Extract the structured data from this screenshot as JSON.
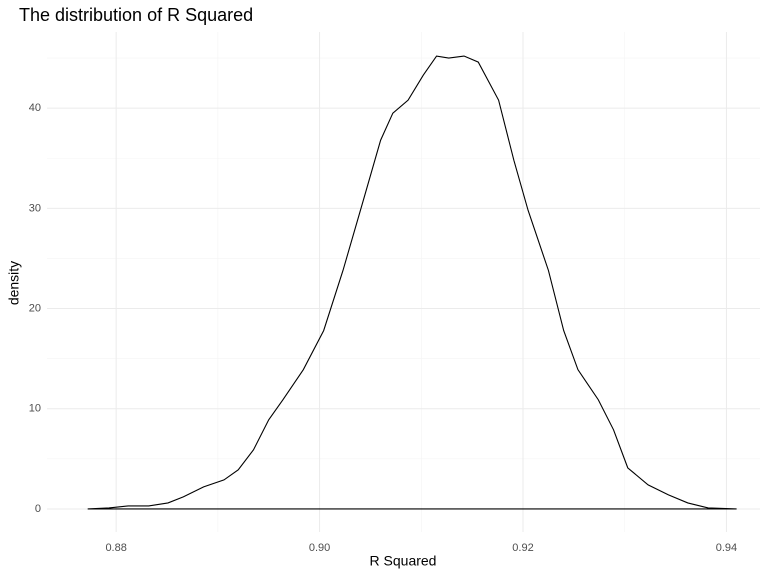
{
  "chart_data": {
    "type": "density",
    "title": "The distribution of R Squared",
    "x_label": "R Squared",
    "y_label": "density",
    "x": [
      0.8772,
      0.8793,
      0.8812,
      0.8832,
      0.8851,
      0.8866,
      0.8886,
      0.8906,
      0.892,
      0.8935,
      0.895,
      0.8964,
      0.8984,
      0.9004,
      0.9023,
      0.9043,
      0.906,
      0.9072,
      0.9087,
      0.9102,
      0.9115,
      0.9127,
      0.9142,
      0.9156,
      0.9176,
      0.9191,
      0.9205,
      0.9225,
      0.924,
      0.9254,
      0.9274,
      0.9289,
      0.9303,
      0.9323,
      0.9343,
      0.9362,
      0.9382,
      0.941
    ],
    "values": [
      0,
      0.1,
      0.3,
      0.3,
      0.6,
      1.2,
      2.2,
      2.9,
      3.9,
      5.9,
      8.9,
      10.9,
      13.9,
      17.8,
      23.8,
      30.8,
      36.8,
      39.5,
      40.8,
      43.3,
      45.2,
      45.0,
      45.2,
      44.6,
      40.8,
      34.8,
      29.8,
      23.8,
      17.8,
      13.9,
      10.9,
      7.9,
      4.1,
      2.4,
      1.4,
      0.6,
      0.1,
      0
    ],
    "color": "#000000",
    "xlim": [
      0.8732,
      0.9433
    ],
    "xticks": [
      0.88,
      {
        "value": 0.9,
        "label": "0.90"
      },
      0.92,
      0.94
    ],
    "x_minor_ticks": [
      0.89,
      0.91,
      0.93
    ],
    "ylim": [
      -2.3,
      47.6
    ],
    "yticks": [
      0,
      10,
      20,
      30,
      40
    ],
    "y_minor_ticks": [
      5,
      15,
      25,
      35,
      45
    ],
    "grid": true
  }
}
